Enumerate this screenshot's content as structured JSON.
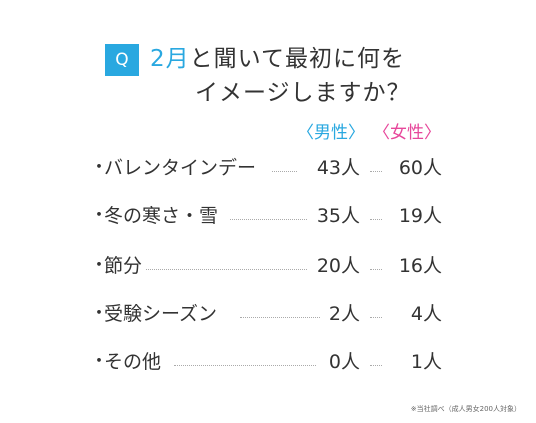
{
  "question": {
    "badge": "Q",
    "line1_month": "2月",
    "line1_rest": "と聞いて最初に何を",
    "line2": "イメージしますか？"
  },
  "headers": {
    "male": "〈男性〉",
    "female": "〈女性〉"
  },
  "rows": [
    {
      "bullet": "・",
      "label": "バレンタインデー",
      "male": "43人",
      "female": "60人"
    },
    {
      "bullet": "・",
      "label": "冬の寒さ・雪",
      "male": "35人",
      "female": "19人"
    },
    {
      "bullet": "・",
      "label": "節分",
      "male": "20人",
      "female": "16人"
    },
    {
      "bullet": "・",
      "label": "受験シーズン",
      "male": "2人",
      "female": "4人"
    },
    {
      "bullet": "・",
      "label": "その他",
      "male": "0人",
      "female": "1人"
    }
  ],
  "footnote": "※当社調べ（成人男女200人対象）",
  "colors": {
    "accent_blue": "#29a8e0",
    "accent_pink": "#e7479b",
    "text": "#333333"
  }
}
